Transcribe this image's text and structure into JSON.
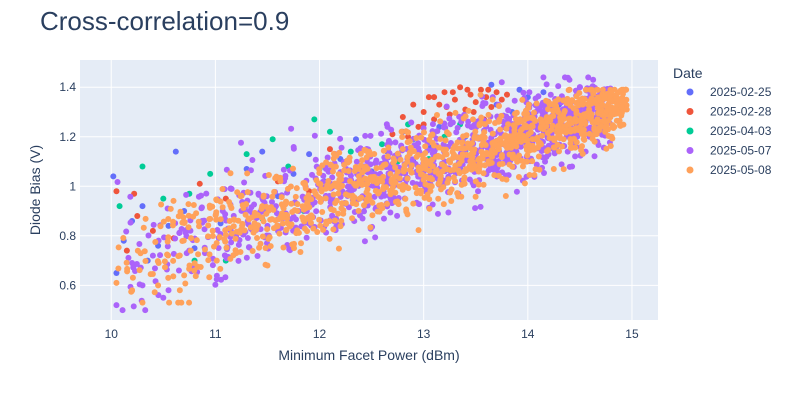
{
  "chart_data": {
    "type": "scatter",
    "title": "Cross-correlation=0.9",
    "xlabel": "Minimum Facet Power (dBm)",
    "ylabel": "Diode Bias (V)",
    "xlim": [
      9.7,
      15.25
    ],
    "ylim": [
      0.46,
      1.51
    ],
    "x_ticks": [
      10,
      11,
      12,
      13,
      14,
      15
    ],
    "y_ticks": [
      0.6,
      0.8,
      1,
      1.2,
      1.4
    ],
    "y_tick_labels": [
      "0.6",
      "0.8",
      "1",
      "1.2",
      "1.4"
    ],
    "grid": true,
    "legend_title": "Date",
    "legend_position": "right",
    "series": [
      {
        "name": "2025-02-25",
        "color": "#636efa",
        "points": [
          [
            10.02,
            1.04
          ],
          [
            10.05,
            0.65
          ],
          [
            10.12,
            0.78
          ],
          [
            10.2,
            0.86
          ],
          [
            10.3,
            0.92
          ],
          [
            10.35,
            0.7
          ],
          [
            10.45,
            0.76
          ],
          [
            10.55,
            0.84
          ],
          [
            10.62,
            1.14
          ],
          [
            10.7,
            0.9
          ],
          [
            10.8,
            0.75
          ],
          [
            10.95,
            0.92
          ],
          [
            11.05,
            0.85
          ],
          [
            11.15,
            0.99
          ],
          [
            11.3,
            1.07
          ],
          [
            11.45,
            1.14
          ],
          [
            11.6,
            0.96
          ],
          [
            11.75,
            1.05
          ],
          [
            11.9,
            1.13
          ],
          [
            12.05,
            1.02
          ],
          [
            12.2,
            1.11
          ],
          [
            12.35,
            1.19
          ],
          [
            12.5,
            1.06
          ],
          [
            12.65,
            1.14
          ],
          [
            12.8,
            1.22
          ],
          [
            12.9,
            1.1
          ],
          [
            13.05,
            1.16
          ],
          [
            13.15,
            1.24
          ],
          [
            13.3,
            1.12
          ],
          [
            13.4,
            1.2
          ],
          [
            13.55,
            1.27
          ],
          [
            13.7,
            1.33
          ],
          [
            13.85,
            1.3
          ],
          [
            14.0,
            1.36
          ],
          [
            14.15,
            1.38
          ],
          [
            14.3,
            1.33
          ],
          [
            13.92,
            1.39
          ],
          [
            13.65,
            1.41
          ]
        ]
      },
      {
        "name": "2025-02-28",
        "color": "#ef553b",
        "points": [
          [
            10.05,
            0.98
          ],
          [
            10.15,
            0.74
          ],
          [
            10.22,
            0.97
          ],
          [
            10.25,
            0.88
          ],
          [
            10.4,
            0.82
          ],
          [
            10.6,
            0.79
          ],
          [
            10.85,
            1.01
          ],
          [
            11.1,
            0.95
          ],
          [
            11.35,
            0.83
          ],
          [
            11.6,
            1.02
          ],
          [
            11.9,
            0.98
          ],
          [
            12.1,
            1.15
          ],
          [
            12.4,
            1.08
          ],
          [
            12.7,
            1.21
          ],
          [
            12.8,
            1.28
          ],
          [
            12.9,
            1.33
          ],
          [
            12.95,
            1.24
          ],
          [
            13.0,
            1.3
          ],
          [
            13.05,
            1.36
          ],
          [
            13.1,
            1.27
          ],
          [
            13.15,
            1.33
          ],
          [
            13.2,
            1.38
          ],
          [
            13.25,
            1.29
          ],
          [
            13.3,
            1.35
          ],
          [
            13.35,
            1.4
          ],
          [
            13.4,
            1.31
          ],
          [
            13.45,
            1.37
          ],
          [
            13.5,
            1.34
          ],
          [
            13.55,
            1.39
          ],
          [
            13.6,
            1.36
          ],
          [
            13.65,
            1.32
          ],
          [
            13.7,
            1.38
          ],
          [
            13.75,
            1.35
          ],
          [
            13.8,
            1.37
          ],
          [
            13.1,
            1.36
          ],
          [
            13.22,
            1.32
          ],
          [
            13.38,
            1.28
          ],
          [
            13.48,
            1.3
          ],
          [
            13.58,
            1.27
          ],
          [
            12.85,
            1.2
          ],
          [
            13.0,
            1.25
          ],
          [
            13.28,
            1.38
          ],
          [
            13.42,
            1.39
          ],
          [
            13.62,
            1.39
          ]
        ]
      },
      {
        "name": "2025-04-03",
        "color": "#00cc96",
        "points": [
          [
            10.08,
            0.92
          ],
          [
            10.3,
            1.08
          ],
          [
            10.5,
            0.95
          ],
          [
            10.75,
            0.97
          ],
          [
            10.8,
            0.7
          ],
          [
            10.95,
            1.05
          ],
          [
            11.1,
            0.7
          ],
          [
            11.3,
            1.13
          ],
          [
            11.45,
            0.87
          ],
          [
            11.55,
            1.19
          ],
          [
            11.7,
            1.08
          ],
          [
            11.85,
            0.9
          ],
          [
            12.0,
            1.07
          ],
          [
            12.1,
            1.22
          ],
          [
            12.3,
            1.14
          ],
          [
            12.45,
            1.06
          ],
          [
            12.6,
            1.17
          ],
          [
            12.75,
            1.1
          ],
          [
            12.9,
            1.19
          ],
          [
            13.05,
            1.11
          ],
          [
            13.2,
            1.2
          ],
          [
            13.35,
            1.07
          ],
          [
            13.4,
            1.14
          ],
          [
            13.5,
            1.2
          ],
          [
            13.35,
            1.25
          ],
          [
            13.6,
            1.17
          ],
          [
            12.55,
            1.02
          ],
          [
            11.95,
            1.27
          ],
          [
            12.85,
            1.25
          ],
          [
            13.25,
            1.1
          ]
        ]
      },
      {
        "name": "2025-05-07",
        "color": "#ab63fa",
        "cluster": {
          "xlim": [
            10.0,
            14.8
          ],
          "ylim": [
            0.5,
            1.44
          ],
          "count": 1000,
          "spread": 0.09
        },
        "points": [
          [
            10.05,
            0.52
          ],
          [
            10.3,
            0.6
          ],
          [
            10.5,
            0.55
          ],
          [
            10.55,
            0.58
          ],
          [
            10.2,
            0.69
          ],
          [
            10.4,
            0.72
          ],
          [
            10.65,
            0.66
          ],
          [
            10.9,
            0.73
          ],
          [
            11.2,
            0.8
          ],
          [
            11.5,
            0.84
          ],
          [
            11.8,
            0.9
          ],
          [
            12.1,
            0.96
          ],
          [
            14.4,
            1.43
          ],
          [
            14.5,
            1.4
          ],
          [
            14.15,
            1.44
          ],
          [
            14.7,
            1.38
          ],
          [
            13.75,
            1.42
          ]
        ]
      },
      {
        "name": "2025-05-08",
        "color": "#ffa15a",
        "cluster": {
          "xlim": [
            10.0,
            14.95
          ],
          "ylim": [
            0.53,
            1.39
          ],
          "count": 1100,
          "spread": 0.08
        },
        "points": [
          [
            10.05,
            0.61
          ],
          [
            10.2,
            0.58
          ],
          [
            10.3,
            0.53
          ],
          [
            10.45,
            0.6
          ],
          [
            10.7,
            0.64
          ],
          [
            11.2,
            0.73
          ],
          [
            11.5,
            0.68
          ],
          [
            11.75,
            0.76
          ],
          [
            14.9,
            1.32
          ],
          [
            14.95,
            1.31
          ],
          [
            14.8,
            1.38
          ],
          [
            14.6,
            1.39
          ],
          [
            14.9,
            1.35
          ],
          [
            13.5,
            1.02
          ],
          [
            12.9,
            0.93
          ]
        ]
      }
    ]
  }
}
